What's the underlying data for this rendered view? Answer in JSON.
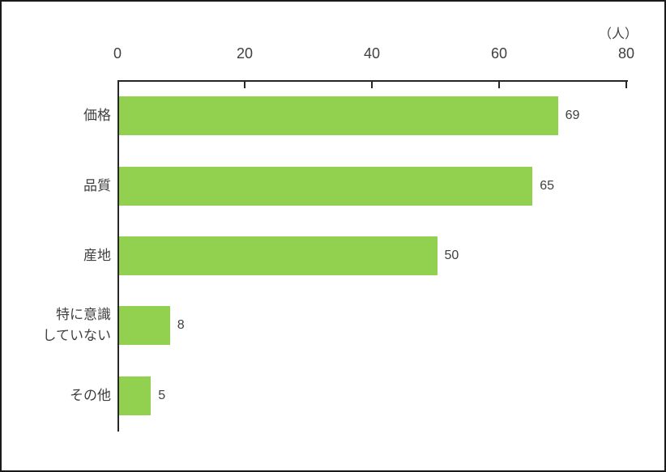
{
  "chart_data": {
    "type": "bar",
    "orientation": "horizontal",
    "title": "",
    "unit_label": "（人）",
    "categories": [
      "価格",
      "品質",
      "産地",
      "特に意識\nしていない",
      "その他"
    ],
    "values": [
      69,
      65,
      50,
      8,
      5
    ],
    "xlabel": "",
    "ylabel": "",
    "xlim": [
      0,
      80
    ],
    "x_ticks": [
      0,
      20,
      40,
      60,
      80
    ],
    "grid": false,
    "legend": "none",
    "value_labels_shown": true,
    "colors": {
      "bar": "#92D050",
      "axis": "#262626",
      "text": "#404040",
      "frame_border": "#1a1a1a",
      "background": "#ffffff"
    }
  }
}
